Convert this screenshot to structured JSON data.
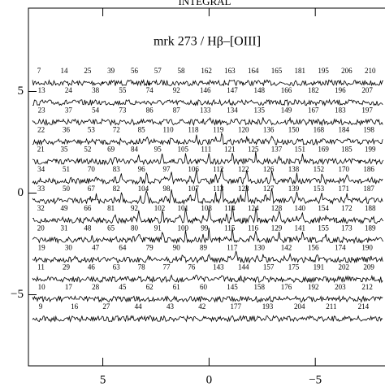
{
  "chart_data": {
    "type": "fiber-map",
    "title": "INTEGRAL",
    "annotation": "mrk 273 / Hβ–[OIII]",
    "xlim": [
      8.5,
      -8.7
    ],
    "ylim": [
      -8.5,
      9.1
    ],
    "xticks": [
      5,
      0,
      {
        "value": -5,
        "label": "−5"
      }
    ],
    "yticks": [
      5,
      0,
      {
        "value": -5,
        "label": "−5"
      }
    ],
    "rows": [
      {
        "labels": [
          "7",
          "14",
          "25",
          "39",
          "56",
          "57",
          "58",
          "162",
          "163",
          "164",
          "165",
          "181",
          "195",
          "206",
          "210"
        ]
      },
      {
        "labels": [
          "13",
          "24",
          "38",
          "55",
          "74",
          "92",
          "146",
          "147",
          "148",
          "166",
          "182",
          "196",
          "207"
        ]
      },
      {
        "labels": [
          "23",
          "37",
          "54",
          "73",
          "86",
          "87",
          "133",
          "134",
          "135",
          "149",
          "167",
          "183",
          "197"
        ]
      },
      {
        "labels": [
          "22",
          "36",
          "53",
          "72",
          "85",
          "110",
          "118",
          "119",
          "120",
          "136",
          "150",
          "168",
          "184",
          "198"
        ]
      },
      {
        "labels": [
          "21",
          "35",
          "52",
          "69",
          "84",
          "95",
          "105",
          "111",
          "121",
          "125",
          "137",
          "151",
          "169",
          "185",
          "199"
        ]
      },
      {
        "labels": [
          "34",
          "51",
          "70",
          "83",
          "96",
          "97",
          "106",
          "112",
          "122",
          "126",
          "138",
          "152",
          "170",
          "186"
        ]
      },
      {
        "labels": [
          "33",
          "50",
          "67",
          "82",
          "104",
          "98",
          "107",
          "113",
          "123",
          "127",
          "139",
          "153",
          "171",
          "187"
        ]
      },
      {
        "labels": [
          "32",
          "49",
          "66",
          "81",
          "92",
          "102",
          "101",
          "108",
          "114",
          "124",
          "128",
          "140",
          "154",
          "172",
          "188"
        ]
      },
      {
        "labels": [
          "20",
          "31",
          "48",
          "65",
          "80",
          "91",
          "100",
          "99",
          "115",
          "116",
          "129",
          "141",
          "155",
          "173",
          "189"
        ]
      },
      {
        "labels": [
          "19",
          "30",
          "47",
          "64",
          "79",
          "90",
          "89",
          "117",
          "130",
          "142",
          "156",
          "174",
          "190"
        ]
      },
      {
        "labels": [
          "11",
          "29",
          "46",
          "63",
          "78",
          "77",
          "76",
          "143",
          "144",
          "157",
          "175",
          "191",
          "202",
          "209"
        ]
      },
      {
        "labels": [
          "10",
          "17",
          "28",
          "45",
          "62",
          "61",
          "60",
          "145",
          "158",
          "176",
          "192",
          "203",
          "212"
        ]
      },
      {
        "labels": [
          "9",
          "16",
          "27",
          "44",
          "43",
          "42",
          "177",
          "193",
          "204",
          "211",
          "214"
        ]
      }
    ]
  }
}
